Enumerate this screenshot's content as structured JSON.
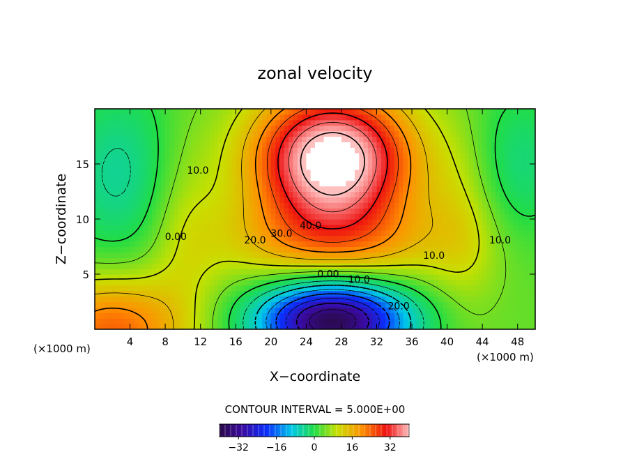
{
  "chart_data": {
    "type": "heatmap",
    "title": "zonal velocity",
    "xlabel": "X−coordinate",
    "ylabel": "Z−coordinate",
    "x_units_left": "(×1000 m)",
    "x_units_right": "(×1000 m)",
    "xlim": [
      0,
      50
    ],
    "ylim": [
      0,
      20
    ],
    "x_ticks": [
      4,
      8,
      12,
      16,
      20,
      24,
      28,
      32,
      36,
      40,
      44,
      48
    ],
    "y_ticks": [
      5,
      10,
      15
    ],
    "contour_interval_label": "CONTOUR INTERVAL = 5.000E+00",
    "contour_interval": 5.0,
    "contour_labels": [
      {
        "text": "40.0",
        "x": 24.5,
        "y": 9.1
      },
      {
        "text": "30.0",
        "x": 21.2,
        "y": 8.4
      },
      {
        "text": "20.0",
        "x": 18.2,
        "y": 7.8
      },
      {
        "text": "10.0",
        "x": 11.7,
        "y": 14.1
      },
      {
        "text": "0.00",
        "x": 9.2,
        "y": 8.1
      },
      {
        "text": "10.0",
        "x": 38.5,
        "y": 6.4
      },
      {
        "text": "10.0",
        "x": 46.0,
        "y": 7.8
      },
      {
        "text": "0.00",
        "x": 26.5,
        "y": 4.7
      },
      {
        "text": "10.0",
        "x": 30.0,
        "y": 4.2
      },
      {
        "text": "20.0",
        "x": 34.5,
        "y": 1.8
      }
    ],
    "colorbar": {
      "range": [
        -40,
        40
      ],
      "tick_values": [
        -32,
        -16,
        0,
        16,
        32
      ],
      "tick_labels": [
        "−32",
        "−16",
        "0",
        "16",
        "32"
      ]
    },
    "field_features": [
      {
        "kind": "max",
        "x": 27,
        "y": 14,
        "value": 45
      },
      {
        "kind": "min",
        "x": 27,
        "y": 1,
        "value": -38
      }
    ]
  }
}
